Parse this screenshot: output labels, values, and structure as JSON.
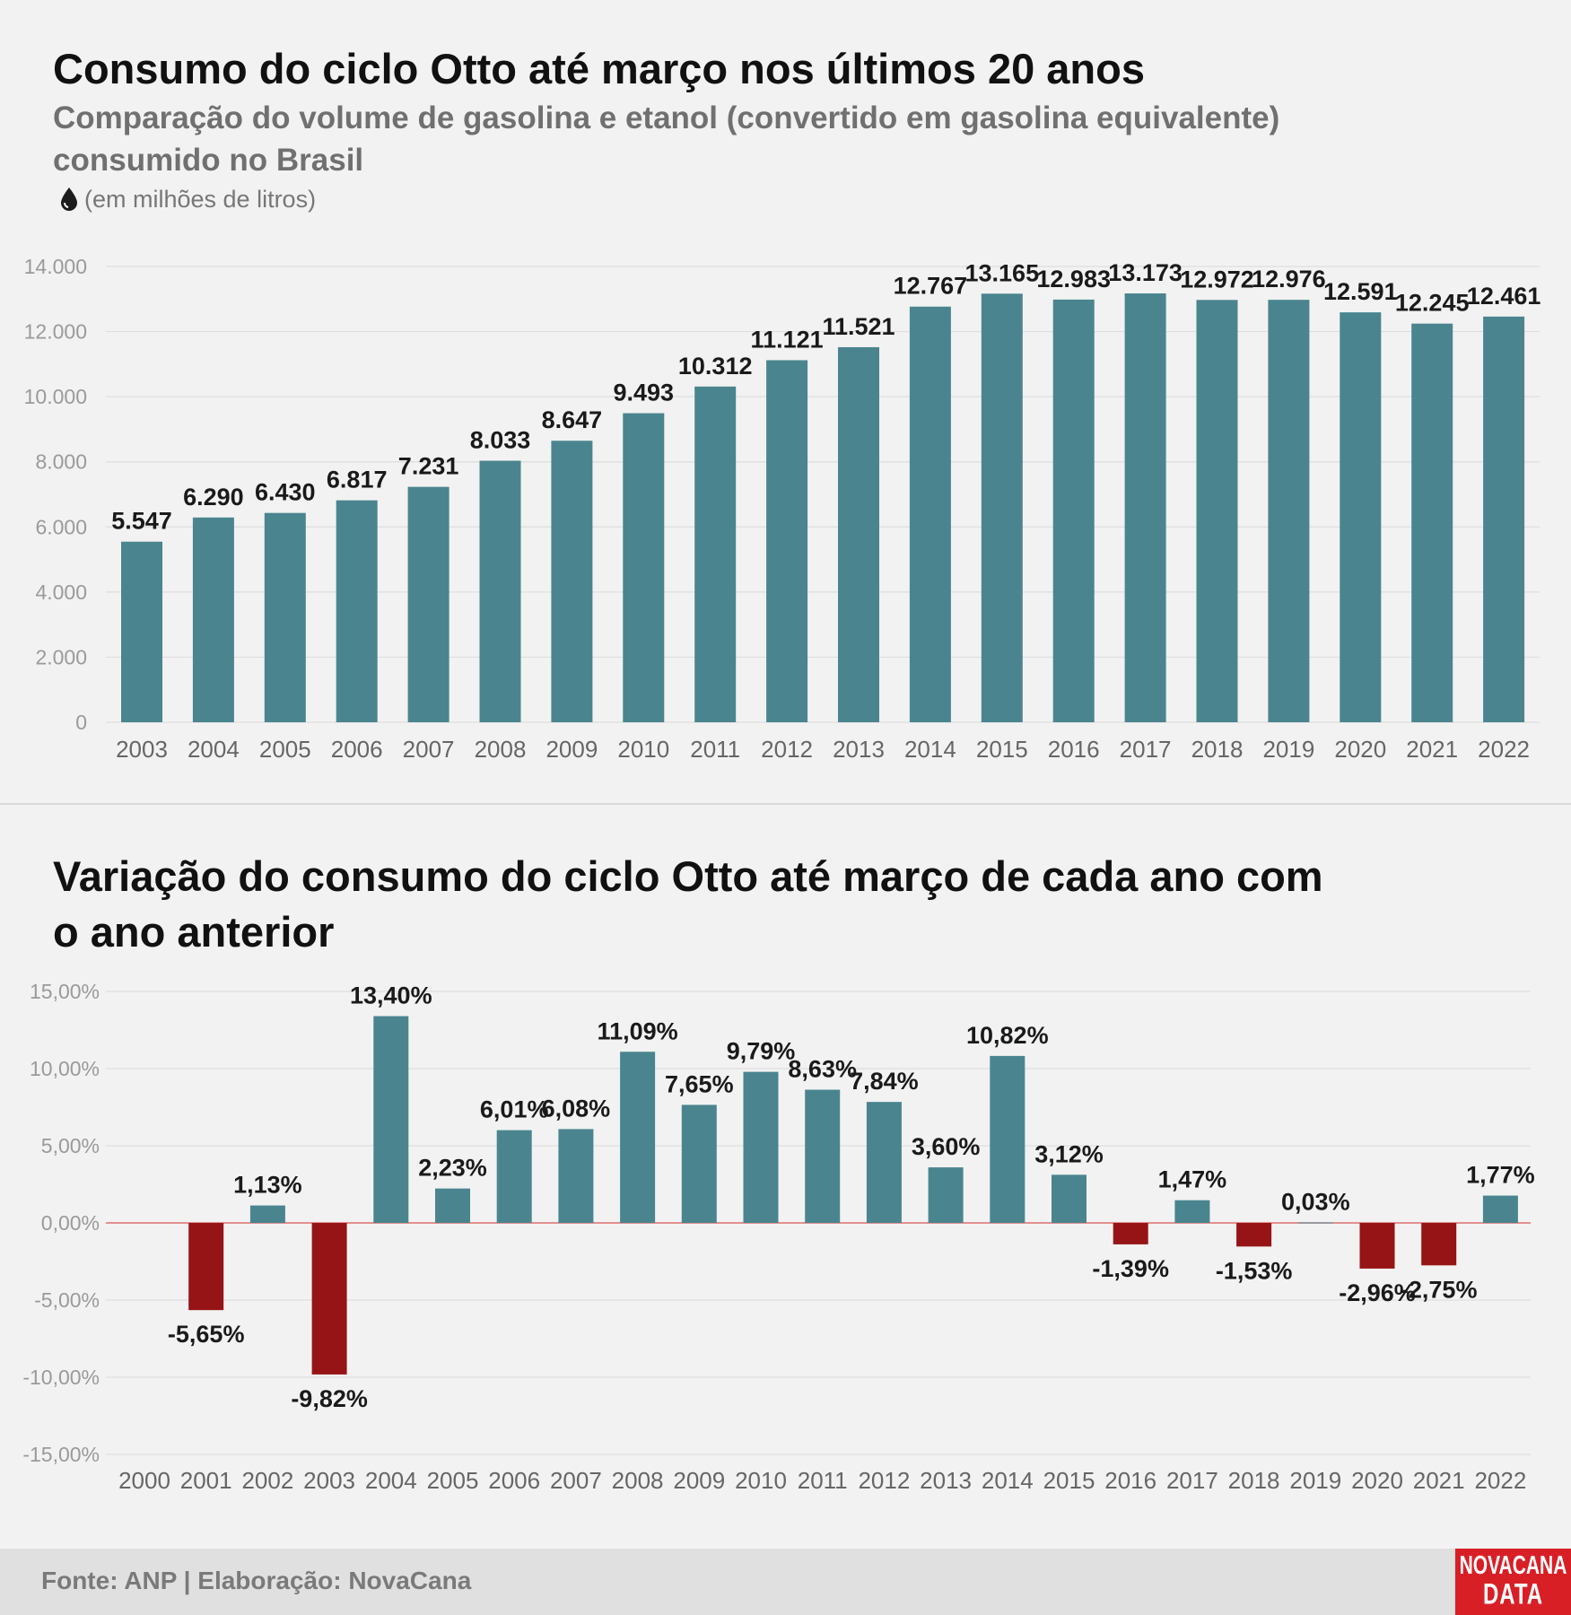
{
  "charts": [
    {
      "title": "Consumo do ciclo Otto até março nos últimos 20 anos",
      "subtitle": "Comparação do volume de gasolina e etanol (convertido em gasolina equivalente) consumido no Brasil",
      "unit": "(em milhões de litros)"
    },
    {
      "title": "Variação do consumo do ciclo Otto até março de cada ano com o ano anterior"
    }
  ],
  "footer": {
    "source": "Fonte: ANP | Elaboração: NovaCana",
    "logo_line1": "NOVACANA",
    "logo_line2": "DATA"
  },
  "colors": {
    "bar_positive": "#4a858f",
    "bar_negative": "#961416",
    "zero_line": "#e07070",
    "grid": "#dedede",
    "tick_text": "#9a9a9a",
    "category_text": "#666666",
    "label_text": "#1a1a1a"
  },
  "chart_data": [
    {
      "type": "bar",
      "categories": [
        "2003",
        "2004",
        "2005",
        "2006",
        "2007",
        "2008",
        "2009",
        "2010",
        "2011",
        "2012",
        "2013",
        "2014",
        "2015",
        "2016",
        "2017",
        "2018",
        "2019",
        "2020",
        "2021",
        "2022"
      ],
      "values": [
        5547,
        6290,
        6430,
        6817,
        7231,
        8033,
        8647,
        9493,
        10312,
        11121,
        11521,
        12767,
        13165,
        12983,
        13173,
        12972,
        12976,
        12591,
        12245,
        12461
      ],
      "data_labels": [
        "5.547",
        "6.290",
        "6.430",
        "6.817",
        "7.231",
        "8.033",
        "8.647",
        "9.493",
        "10.312",
        "11.121",
        "11.521",
        "12.767",
        "13.165",
        "12.983",
        "13.173",
        "12.972",
        "12.976",
        "12.591",
        "12.245",
        "12.461"
      ],
      "ylim": [
        0,
        14000
      ],
      "yticks": [
        0,
        2000,
        4000,
        6000,
        8000,
        10000,
        12000,
        14000
      ],
      "ytick_labels": [
        "0",
        "2.000",
        "4.000",
        "6.000",
        "8.000",
        "10.000",
        "12.000",
        "14.000"
      ],
      "grid": true,
      "legend": "none"
    },
    {
      "type": "bar",
      "categories": [
        "2000",
        "2001",
        "2002",
        "2003",
        "2004",
        "2005",
        "2006",
        "2007",
        "2008",
        "2009",
        "2010",
        "2011",
        "2012",
        "2013",
        "2014",
        "2015",
        "2016",
        "2017",
        "2018",
        "2019",
        "2020",
        "2021",
        "2022"
      ],
      "values": [
        null,
        -5.65,
        1.13,
        -9.82,
        13.4,
        2.23,
        6.01,
        6.08,
        11.09,
        7.65,
        9.79,
        8.63,
        7.84,
        3.6,
        10.82,
        3.12,
        -1.39,
        1.47,
        -1.53,
        0.03,
        -2.96,
        -2.75,
        1.77
      ],
      "data_labels": [
        "",
        "-5,65%",
        "1,13%",
        "-9,82%",
        "13,40%",
        "2,23%",
        "6,01%",
        "6,08%",
        "11,09%",
        "7,65%",
        "9,79%",
        "8,63%",
        "7,84%",
        "3,60%",
        "10,82%",
        "3,12%",
        "-1,39%",
        "1,47%",
        "-1,53%",
        "0,03%",
        "-2,96%",
        "-2,75%",
        "1,77%"
      ],
      "ylim": [
        -15,
        15
      ],
      "yticks": [
        -15,
        -10,
        -5,
        0,
        5,
        10,
        15
      ],
      "ytick_labels": [
        "-15,00%",
        "-10,00%",
        "-5,00%",
        "0,00%",
        "5,00%",
        "10,00%",
        "15,00%"
      ],
      "grid": true,
      "legend": "none"
    }
  ]
}
